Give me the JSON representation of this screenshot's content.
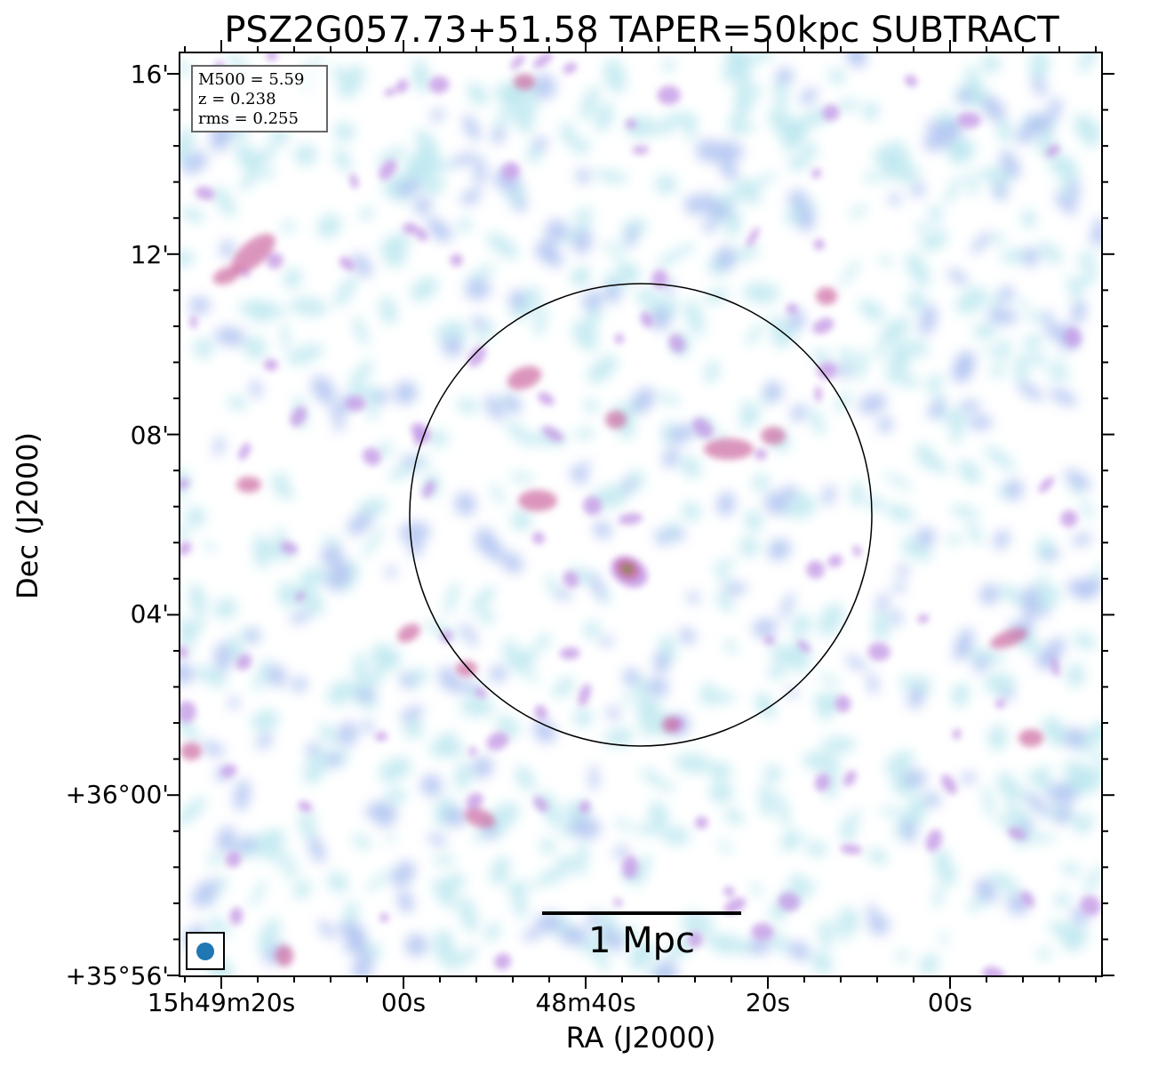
{
  "figure": {
    "title": "PSZ2G057.73+51.58 TAPER=50kpc SUBTRACT",
    "xlabel": "RA (J2000)",
    "ylabel": "Dec (J2000)"
  },
  "axes": {
    "x_ticks": [
      "15h49m20s",
      "00s",
      "48m40s",
      "20s",
      "00s"
    ],
    "y_ticks": [
      "16'",
      "12'",
      "08'",
      "04'",
      "+36°00'",
      "+35°56'"
    ]
  },
  "info_box": {
    "mass": "M500 = 5.59",
    "redshift": "z = 0.238",
    "rms": "rms = 0.255"
  },
  "scale_bar": {
    "label": "1 Mpc"
  },
  "colors": {
    "faint": "#b8e6ee",
    "low": "#a9bdf0",
    "mid": "#c49ae6",
    "high": "#cc6aa0",
    "peak": "#8a8a4a",
    "beam": "#1f77b4"
  },
  "image_features": {
    "colormap": "cubehelix-like (cyan → blue → purple → magenta → olive)",
    "circle": "R500 circle centred on the cluster",
    "beam": "restoring beam, lower-left corner"
  }
}
